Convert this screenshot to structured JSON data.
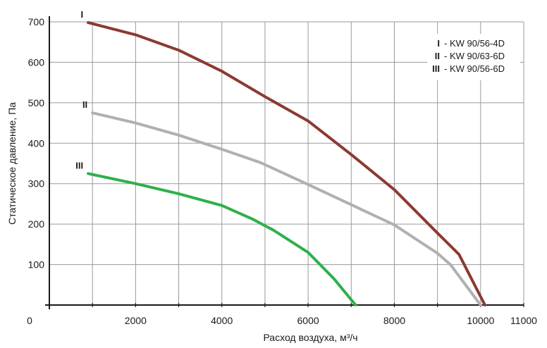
{
  "chart_data": {
    "type": "line",
    "title": "",
    "xlabel": "Расход воздуха, м³/ч",
    "ylabel": "Статическое давление, Па",
    "xlim": [
      0,
      11000
    ],
    "ylim": [
      0,
      700
    ],
    "x_ticks": [
      {
        "value": 0,
        "label": "0"
      },
      {
        "value": 2000,
        "label": "2000"
      },
      {
        "value": 4000,
        "label": "4000"
      },
      {
        "value": 6000,
        "label": "6000"
      },
      {
        "value": 8000,
        "label": "8000"
      },
      {
        "value": 10000,
        "label": "10000"
      },
      {
        "value": 11000,
        "label": "11000"
      }
    ],
    "y_ticks": [
      {
        "value": 100,
        "label": "100"
      },
      {
        "value": 200,
        "label": "200"
      },
      {
        "value": 300,
        "label": "300"
      },
      {
        "value": 400,
        "label": "400"
      },
      {
        "value": 500,
        "label": "500"
      },
      {
        "value": 600,
        "label": "600"
      },
      {
        "value": 700,
        "label": "700"
      }
    ],
    "grid": true,
    "grid_x": [
      1000,
      2000,
      3000,
      4000,
      5000,
      6000,
      7000,
      8000,
      9000,
      10000,
      11000
    ],
    "grid_y": [
      100,
      200,
      300,
      400,
      500,
      600,
      700
    ],
    "legend_position": "top-right",
    "legend": [
      {
        "numeral": "I",
        "text": "- KW 90/56-4D"
      },
      {
        "numeral": "II",
        "text": "- KW 90/63-6D"
      },
      {
        "numeral": "III",
        "text": "- KW 90/56-6D"
      }
    ],
    "series": [
      {
        "numeral": "I",
        "color": "#8b3a32",
        "x": [
          900,
          2000,
          3000,
          4000,
          5000,
          6000,
          7000,
          8000,
          9000,
          9500,
          10100
        ],
        "y": [
          698,
          668,
          630,
          578,
          515,
          455,
          372,
          285,
          178,
          125,
          0
        ]
      },
      {
        "numeral": "II",
        "color": "#b0b0b0",
        "x": [
          1000,
          2000,
          3000,
          4000,
          4900,
          6000,
          7000,
          8000,
          9000,
          9300,
          10000
        ],
        "y": [
          475,
          450,
          420,
          385,
          352,
          298,
          248,
          198,
          128,
          100,
          0
        ]
      },
      {
        "numeral": "III",
        "color": "#2fb04a",
        "x": [
          900,
          2000,
          3000,
          4000,
          4700,
          5200,
          6000,
          6600,
          7100
        ],
        "y": [
          325,
          300,
          275,
          246,
          213,
          185,
          130,
          65,
          0
        ]
      }
    ]
  }
}
